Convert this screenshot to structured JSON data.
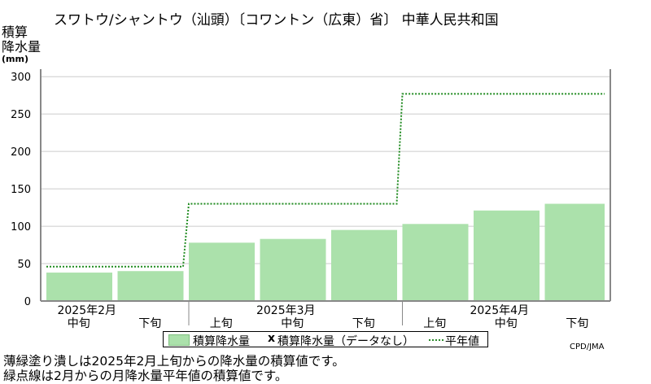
{
  "title": "スワトウ/シャントウ（汕頭）〔コワントン（広東）省〕 中華人民共和国",
  "chart_data": {
    "type": "bar",
    "y_axis_label_line1": "積算",
    "y_axis_label_line2": "降水量",
    "y_axis_unit": "(mm)",
    "ylim": [
      0,
      310
    ],
    "yticks": [
      0,
      50,
      100,
      150,
      200,
      250,
      300
    ],
    "grid": true,
    "categories": [
      "2025年2月中旬",
      "2025年2月下旬",
      "2025年3月上旬",
      "2025年3月中旬",
      "2025年3月下旬",
      "2025年4月上旬",
      "2025年4月中旬",
      "2025年4月下旬"
    ],
    "x_period_labels": [
      "中旬",
      "下旬",
      "上旬",
      "中旬",
      "下旬",
      "上旬",
      "中旬",
      "下旬"
    ],
    "x_month_labels": [
      {
        "label": "2025年2月",
        "index": 0
      },
      {
        "label": "2025年3月",
        "index": 3
      },
      {
        "label": "2025年4月",
        "index": 6
      }
    ],
    "series": [
      {
        "name": "積算降水量",
        "style": "filled-bar",
        "color": "#abe1ab",
        "values": [
          38,
          40,
          78,
          83,
          95,
          103,
          121,
          130
        ]
      },
      {
        "name": "平年値",
        "style": "dotted-step",
        "color": "#1e8a1e",
        "values": [
          46,
          46,
          130,
          130,
          130,
          277,
          277,
          277
        ]
      }
    ],
    "legend": {
      "item1": "積算降水量",
      "item2_marker": "x",
      "item2": "積算降水量（データなし）",
      "item3": "平年値"
    }
  },
  "credit": "CPD/JMA",
  "notes": [
    "薄緑塗り潰しは2025年2月上旬からの降水量の積算値です。",
    "緑点線は2月からの月降水量平年値の積算値です。"
  ]
}
